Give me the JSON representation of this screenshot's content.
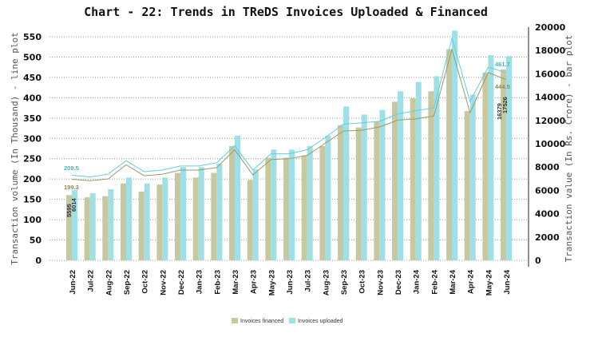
{
  "chart_data": {
    "type": "bar+line",
    "title": "Chart - 22: Trends in TReDS Invoices Uploaded & Financed",
    "ylabel_left": "Transaction volume (In Thousand) - line plot",
    "ylabel_right": "Transaction value (In Rs. Crore) - bar plot",
    "ylim_left": [
      0,
      550
    ],
    "yticks_left": [
      0,
      50,
      100,
      150,
      200,
      250,
      300,
      350,
      400,
      450,
      500,
      550
    ],
    "ylim_right": [
      0,
      20000
    ],
    "yticks_right": [
      0,
      2000,
      4000,
      6000,
      8000,
      10000,
      12000,
      14000,
      16000,
      18000,
      20000
    ],
    "grid": true,
    "legend": "bottom",
    "categories": [
      "Jun-22",
      "Jul-22",
      "Aug-22",
      "Sep-22",
      "Oct-22",
      "Nov-22",
      "Dec-22",
      "Jan-23",
      "Feb-23",
      "Mar-23",
      "Apr-23",
      "May-23",
      "Jun-23",
      "Jul-23",
      "Aug-23",
      "Sep-23",
      "Oct-23",
      "Nov-23",
      "Dec-23",
      "Jan-24",
      "Feb-24",
      "Mar-24",
      "Apr-24",
      "May-24",
      "Jun-24"
    ],
    "bar_series": [
      {
        "name": "Invoices financed",
        "color": "#c8c8a0",
        "values": [
          5595,
          5400,
          5500,
          6600,
          5900,
          6500,
          7500,
          7100,
          7500,
          9800,
          6900,
          8800,
          8800,
          9000,
          9800,
          11600,
          11400,
          11900,
          13600,
          13900,
          14500,
          18100,
          12800,
          16100,
          16379
        ]
      },
      {
        "name": "Invoices uploaded",
        "color": "#9ee0e6",
        "values": [
          6014,
          5750,
          6100,
          7100,
          6600,
          7100,
          8000,
          8000,
          8300,
          10700,
          7800,
          9500,
          9500,
          9800,
          10700,
          13200,
          12500,
          12900,
          14500,
          15300,
          15800,
          19700,
          14200,
          17600,
          17526
        ]
      }
    ],
    "line_series": [
      {
        "name": "Invoices financed (volume)",
        "color": "#9a9a6a",
        "values": [
          199.3,
          196,
          200,
          235,
          208,
          212,
          222,
          222,
          228,
          272,
          210,
          248,
          250,
          258,
          288,
          318,
          320,
          328,
          345,
          348,
          355,
          519,
          363,
          462,
          444.5
        ]
      },
      {
        "name": "Invoices uploaded (volume)",
        "color": "#5fd0dc",
        "values": [
          209.5,
          205,
          212,
          245,
          218,
          222,
          232,
          232,
          240,
          282,
          222,
          262,
          262,
          272,
          302,
          335,
          338,
          342,
          360,
          368,
          375,
          546,
          391,
          475,
          461.7
        ]
      }
    ],
    "data_labels": {
      "line_first_financed": "199.3",
      "line_first_uploaded": "209.5",
      "line_last_financed": "444.5",
      "line_last_uploaded": "461.7",
      "bar_first_financed": "5595",
      "bar_first_uploaded": "6014",
      "bar_last_financed": "16379",
      "bar_last_uploaded": "17526"
    },
    "legend_labels": [
      "Invoices financed",
      "Invoices uploaded"
    ]
  }
}
